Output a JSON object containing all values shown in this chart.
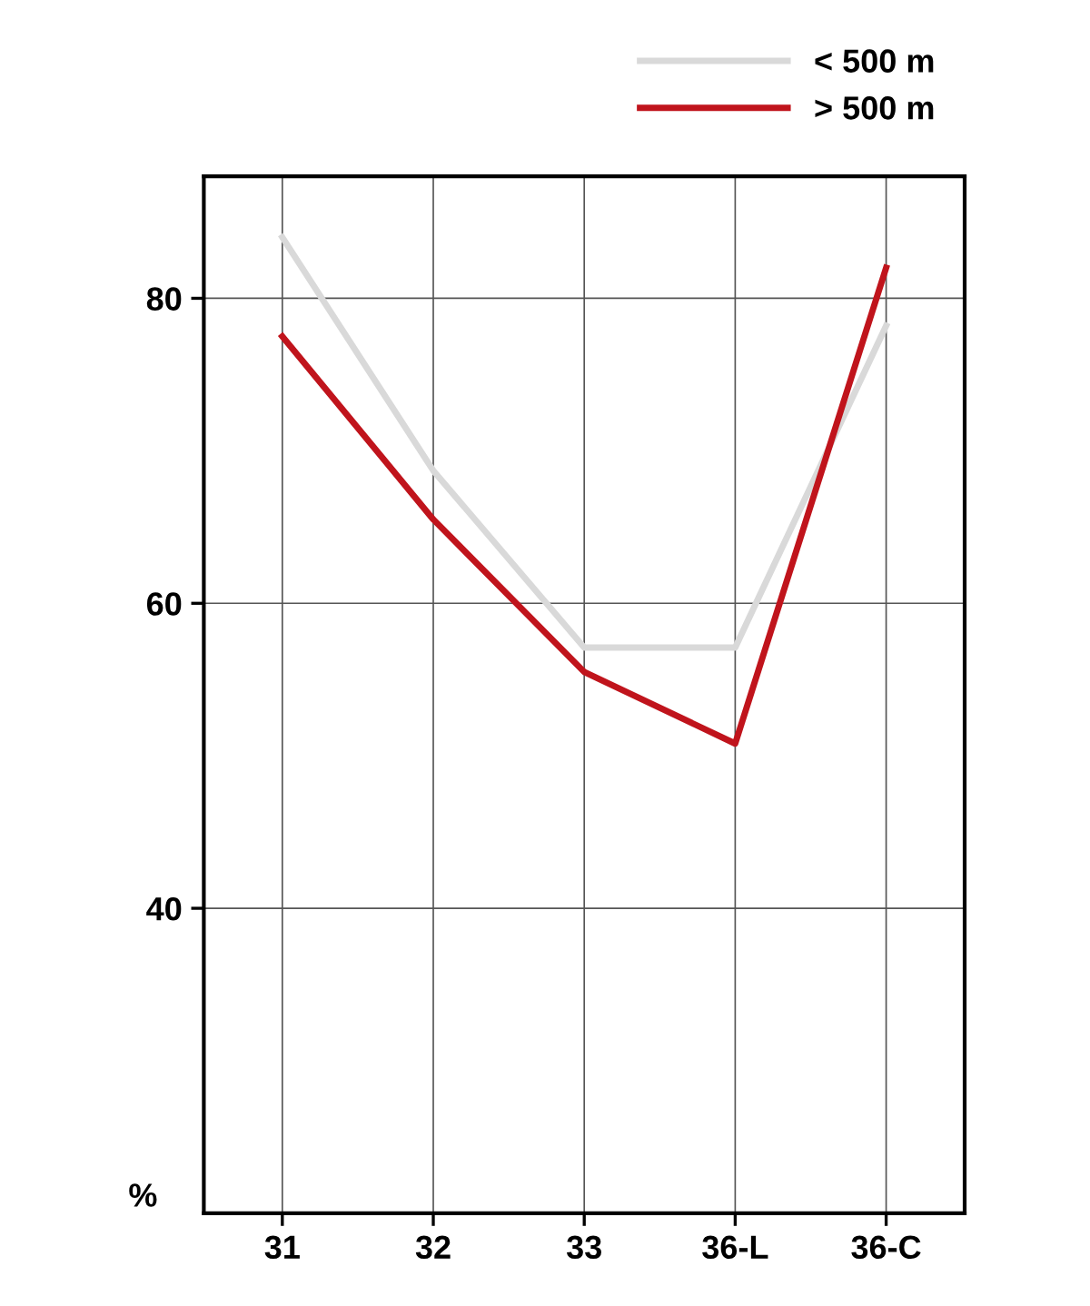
{
  "chart_data": {
    "type": "line",
    "ylabel": "%",
    "categories": [
      "31",
      "32",
      "33",
      "36-L",
      "36-C"
    ],
    "series": [
      {
        "name": "< 500 m",
        "color": "#d9d9d9",
        "values": [
          84,
          68.7,
          57.1,
          57.1,
          78.2
        ]
      },
      {
        "name": "> 500 m",
        "color": "#c0141c",
        "values": [
          77.5,
          65.5,
          55.5,
          50.8,
          82
        ]
      }
    ],
    "ylim": [
      20,
      88
    ],
    "yticks": [
      40,
      60,
      80
    ],
    "grid": true,
    "legend": "top right",
    "marker": "none",
    "line_style": "solid"
  }
}
